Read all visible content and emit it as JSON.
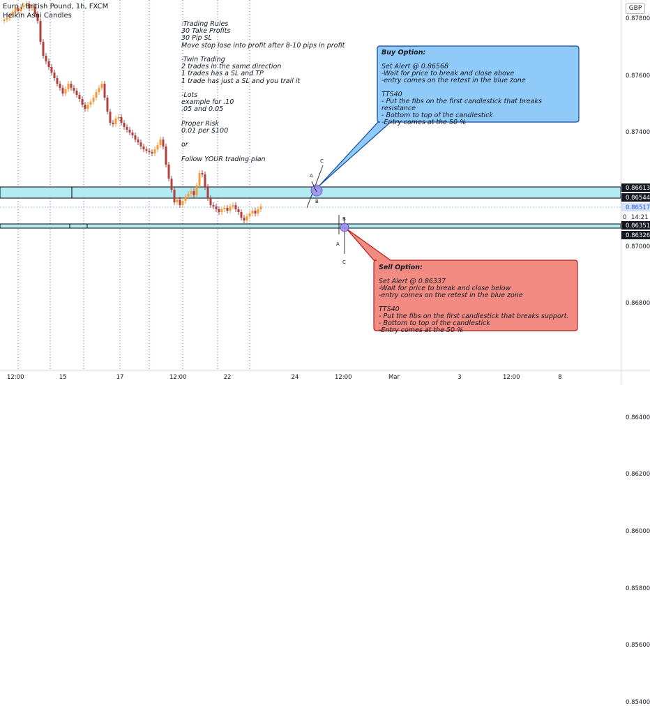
{
  "symbol": {
    "title": "Euro / British Pound, 1h, FXCM",
    "indicator": "Heikin Ashi Candles",
    "currency": "GBP"
  },
  "notes": [
    "-Trading Rules",
    "30 Take Profits",
    "30 Pip SL",
    "Move stop lose into profit after 8-10 pips in profit",
    "",
    "-Twin Trading",
    "2 trades in the same direction",
    "1 trades has a SL and TP",
    "1 trade has just a SL and you trail it",
    "",
    "-Lots",
    "example for .10",
    ".05 and 0.05",
    "",
    "Proper Risk",
    "0.01 per $100",
    "",
    "or",
    "",
    "Follow YOUR trading plan"
  ],
  "buy_option": {
    "title": "Buy Option:",
    "lines": [
      "",
      "Set Alert @ 0.86568",
      "-Wait for price to break and close above",
      "-entry comes on the retest in the blue zone",
      "",
      "TTS40",
      "- Put the fibs on the first candlestick that breaks",
      "resistance",
      "- Bottom to top of the candlestick",
      "-Entry comes at the 50 %"
    ]
  },
  "sell_option": {
    "title": "Sell Option:",
    "lines": [
      "",
      "Set Alert @ 0.86337",
      "-Wait for price to break and close below",
      "-entry comes on the retest in the blue zone",
      "",
      "TTS40",
      "- Put the fibs on the first candlestick that breaks support.",
      "- Bottom to top of the candlestick",
      "-Entry comes at the 50 %"
    ]
  },
  "fib_labels": {
    "buy": [
      "A",
      "B",
      "C"
    ],
    "sell": [
      "A",
      "B",
      "C"
    ]
  },
  "price_ticks": [
    "0.87800",
    "0.87600",
    "0.87400",
    "0.87200",
    "0.87000",
    "0.86800",
    "0.86400",
    "0.86200",
    "0.86000",
    "0.85800",
    "0.85600",
    "0.85400"
  ],
  "price_tags": {
    "resistance_top": "0.86613",
    "resistance_bottom": "0.86544",
    "current_price": "0.86517",
    "countdown": "14:21",
    "support_top": "0.86351",
    "support_bottom": "0.86326",
    "hidden": "0"
  },
  "time_ticks": [
    "12:00",
    "15",
    "17",
    "12:00",
    "22",
    "24",
    "12:00",
    "Mar",
    "3",
    "12:00",
    "8"
  ],
  "colors": {
    "zone_fill": "#b2ebf2",
    "zone_border": "#000000",
    "buy_fill": "#90caf9",
    "buy_border": "#0d47a1",
    "sell_fill": "#f28b82",
    "sell_border": "#b71c1c",
    "candle_up": "#b0413e",
    "candle_down": "#f39c3a",
    "fib_circle": "#9c8cf0",
    "current_price_tag": "#d4e3fa",
    "dark_tag": "#131722"
  }
}
